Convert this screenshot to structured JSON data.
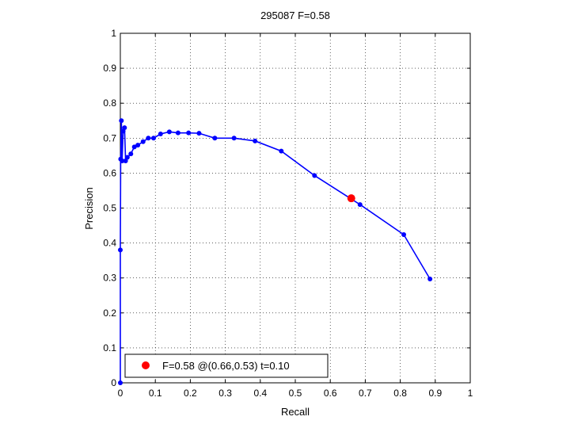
{
  "chart_data": {
    "type": "line",
    "title": "295087 F=0.58",
    "xlabel": "Recall",
    "ylabel": "Precision",
    "xlim": [
      0,
      1
    ],
    "ylim": [
      0,
      1
    ],
    "xticks": [
      "0",
      "0.1",
      "0.2",
      "0.3",
      "0.4",
      "0.5",
      "0.6",
      "0.7",
      "0.8",
      "0.9",
      "1"
    ],
    "yticks": [
      "0",
      "0.1",
      "0.2",
      "0.3",
      "0.4",
      "0.5",
      "0.6",
      "0.7",
      "0.8",
      "0.9",
      "1"
    ],
    "grid": true,
    "legend_position": "bottom-left",
    "series": [
      {
        "color": "#0000ff",
        "x": [
          0.0,
          0.0,
          0.001,
          0.003,
          0.005,
          0.008,
          0.012,
          0.015,
          0.02,
          0.03,
          0.04,
          0.05,
          0.065,
          0.08,
          0.095,
          0.115,
          0.14,
          0.165,
          0.195,
          0.225,
          0.27,
          0.325,
          0.385,
          0.46,
          0.555,
          0.685,
          0.81,
          0.885
        ],
        "y": [
          0.0,
          0.38,
          0.64,
          0.75,
          0.635,
          0.72,
          0.73,
          0.635,
          0.645,
          0.655,
          0.675,
          0.68,
          0.69,
          0.7,
          0.7,
          0.712,
          0.718,
          0.715,
          0.715,
          0.714,
          0.7,
          0.7,
          0.692,
          0.663,
          0.593,
          0.51,
          0.424,
          0.297
        ]
      }
    ],
    "highlight": {
      "label": "F=0.58 @(0.66,0.53) t=0.10",
      "x": 0.66,
      "y": 0.528,
      "color": "#ff0000"
    }
  }
}
